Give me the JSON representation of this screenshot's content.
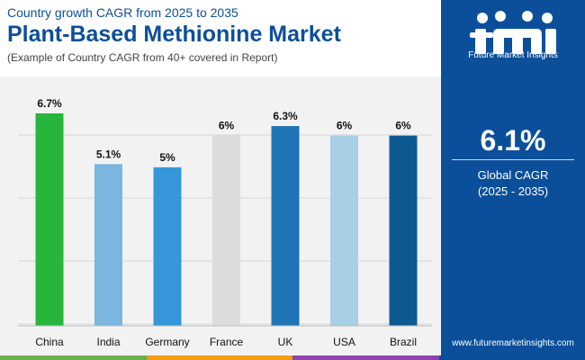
{
  "header": {
    "subtitle": "Country growth CAGR from 2025 to 2035",
    "title": "Plant-Based Methionine Market",
    "note": "(Example of Country CAGR from 40+ covered in Report)"
  },
  "sidebar": {
    "brand_logo": "fmi",
    "brand_name": "Future Market Insights",
    "global_cagr_value": "6.1%",
    "global_cagr_label": "Global CAGR",
    "global_cagr_period": "(2025 - 2035)",
    "website": "www.futuremarketinsights.com"
  },
  "colors": {
    "brand_blue": "#0b4f9a",
    "footer": [
      "#6ab04c",
      "#f39c12",
      "#8e44ad",
      "#0b4f9a"
    ]
  },
  "chart_data": {
    "type": "bar",
    "title": "Plant-Based Methionine Market",
    "categories": [
      "China",
      "India",
      "Germany",
      "France",
      "UK",
      "USA",
      "Brazil"
    ],
    "values": [
      6.7,
      5.1,
      5.0,
      6.0,
      6.3,
      6.0,
      6.0
    ],
    "labels": [
      "6.7%",
      "5.1%",
      "5%",
      "6%",
      "6.3%",
      "6%",
      "6%"
    ],
    "colors": [
      "#28b53c",
      "#7ab6e0",
      "#3597d9",
      "#dcdcdc",
      "#1f74b5",
      "#a8cfe6",
      "#0d5a93"
    ],
    "ylim": [
      0,
      6.7
    ],
    "grid": true,
    "xlabel": "",
    "ylabel": "",
    "legend": "none"
  }
}
